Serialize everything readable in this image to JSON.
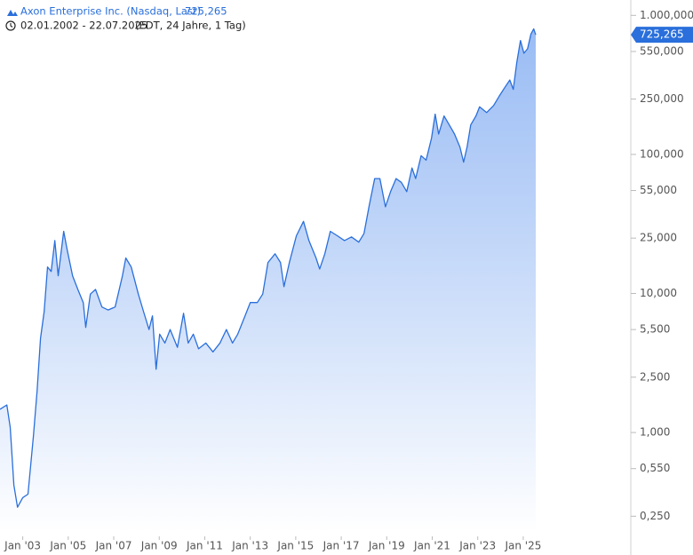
{
  "chart_data": {
    "type": "line",
    "title": "Axon Enterprise Inc. (Nasdaq, Last)",
    "subtitle": "02.01.2002 - 22.07.2025",
    "subtitle_note": "(EDT, 24 Jahre, 1 Tag)",
    "last_price": {
      "value": 725.265,
      "label": "725,265"
    },
    "yscale": "log",
    "color": "#2a6fdb",
    "area_color": "#8fb5f3",
    "xlim": [
      2002.0,
      2025.55
    ],
    "ylim": [
      0.19,
      1290
    ],
    "xticks": [
      {
        "value": 2003,
        "label": "Jan '03"
      },
      {
        "value": 2005,
        "label": "Jan '05"
      },
      {
        "value": 2007,
        "label": "Jan '07"
      },
      {
        "value": 2009,
        "label": "Jan '09"
      },
      {
        "value": 2011,
        "label": "Jan '11"
      },
      {
        "value": 2013,
        "label": "Jan '13"
      },
      {
        "value": 2015,
        "label": "Jan '15"
      },
      {
        "value": 2017,
        "label": "Jan '17"
      },
      {
        "value": 2019,
        "label": "Jan '19"
      },
      {
        "value": 2021,
        "label": "Jan '21"
      },
      {
        "value": 2023,
        "label": "Jan '23"
      },
      {
        "value": 2025,
        "label": "Jan '25"
      }
    ],
    "yticks": [
      {
        "value": 1000,
        "label": "1.000,000"
      },
      {
        "value": 550,
        "label": "550,000"
      },
      {
        "value": 250,
        "label": "250,000"
      },
      {
        "value": 100,
        "label": "100,000"
      },
      {
        "value": 55,
        "label": "55,000"
      },
      {
        "value": 25,
        "label": "25,000"
      },
      {
        "value": 10,
        "label": "10,000"
      },
      {
        "value": 5.5,
        "label": "5,500"
      },
      {
        "value": 2.5,
        "label": "2,500"
      },
      {
        "value": 1,
        "label": "1,000"
      },
      {
        "value": 0.55,
        "label": "0,550"
      },
      {
        "value": 0.25,
        "label": "0,250"
      }
    ],
    "x": [
      2002.0,
      2002.3,
      2002.45,
      2002.61,
      2002.77,
      2003.0,
      2003.23,
      2003.47,
      2003.63,
      2003.78,
      2003.94,
      2004.09,
      2004.25,
      2004.41,
      2004.56,
      2004.8,
      2004.95,
      2005.19,
      2005.42,
      2005.66,
      2005.77,
      2005.97,
      2006.2,
      2006.48,
      2006.75,
      2007.06,
      2007.38,
      2007.53,
      2007.77,
      2008.08,
      2008.31,
      2008.55,
      2008.7,
      2008.86,
      2009.02,
      2009.25,
      2009.48,
      2009.8,
      2010.07,
      2010.27,
      2010.5,
      2010.73,
      2011.05,
      2011.36,
      2011.67,
      2011.95,
      2012.22,
      2012.45,
      2012.77,
      2013.0,
      2013.31,
      2013.55,
      2013.78,
      2014.09,
      2014.33,
      2014.48,
      2014.72,
      2015.03,
      2015.34,
      2015.58,
      2015.89,
      2016.05,
      2016.28,
      2016.52,
      2016.83,
      2017.14,
      2017.45,
      2017.77,
      2018.0,
      2018.23,
      2018.47,
      2018.7,
      2018.94,
      2019.17,
      2019.41,
      2019.64,
      2019.88,
      2020.11,
      2020.27,
      2020.51,
      2020.73,
      2020.97,
      2021.13,
      2021.28,
      2021.52,
      2021.75,
      2021.98,
      2022.22,
      2022.38,
      2022.53,
      2022.69,
      2022.92,
      2023.08,
      2023.39,
      2023.7,
      2023.94,
      2024.17,
      2024.41,
      2024.56,
      2024.72,
      2024.88,
      2025.03,
      2025.19,
      2025.34,
      2025.46,
      2025.55
    ],
    "values": [
      1.47,
      1.58,
      1.09,
      0.42,
      0.29,
      0.34,
      0.36,
      0.94,
      1.97,
      4.76,
      7.4,
      15.5,
      14.4,
      24,
      13.4,
      28,
      20.8,
      13.4,
      10.7,
      8.6,
      5.7,
      9.9,
      10.7,
      8.0,
      7.6,
      8.0,
      13.4,
      18,
      15.5,
      9.9,
      7.4,
      5.5,
      6.9,
      2.85,
      5.1,
      4.4,
      5.5,
      4.1,
      7.2,
      4.4,
      5.1,
      4.0,
      4.4,
      3.8,
      4.4,
      5.5,
      4.4,
      5.1,
      6.9,
      8.6,
      8.6,
      9.9,
      16.7,
      19.3,
      16.7,
      11.2,
      16.7,
      26,
      33,
      24,
      18,
      15,
      19.3,
      28,
      26,
      24,
      25.5,
      23.4,
      27,
      43,
      67,
      67,
      42,
      54,
      67,
      63,
      54,
      80,
      67,
      98,
      91,
      131,
      195,
      140,
      189,
      163,
      140,
      113,
      88,
      113,
      163,
      189,
      220,
      200,
      225,
      262,
      300,
      343,
      294,
      460,
      660,
      535,
      575,
      735,
      800,
      725.265
    ]
  }
}
